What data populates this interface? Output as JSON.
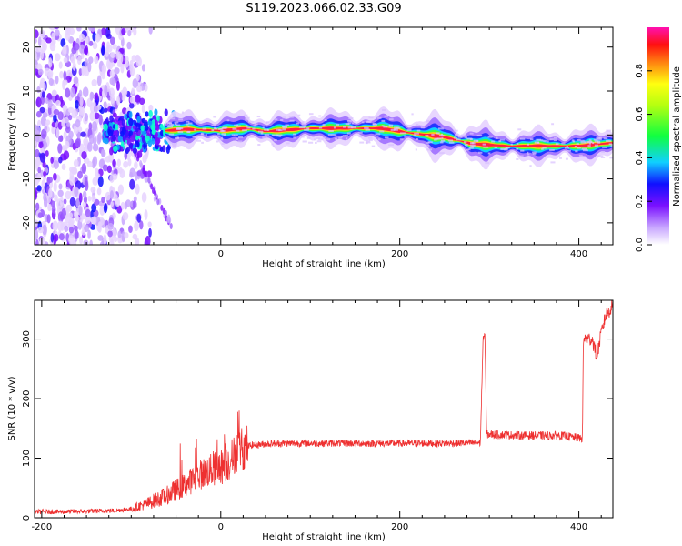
{
  "title": "S119.2023.066.02.33.G09",
  "chart_data": [
    {
      "type": "heatmap",
      "xlabel": "Height of straight line (km)",
      "ylabel": "Frequency (Hz)",
      "xlim": [
        -208,
        438
      ],
      "ylim": [
        -25,
        24.5
      ],
      "xticks": [
        -200,
        0,
        200,
        400
      ],
      "yticks": [
        -20,
        -10,
        0,
        10,
        20
      ],
      "colorbar": {
        "label": "Normalized spectral amplitude",
        "range": [
          0,
          1
        ],
        "ticks": [
          "0.0",
          "0.2",
          "0.4",
          "0.6",
          "0.8"
        ]
      },
      "ridge": [
        {
          "x": -60,
          "y": 1
        },
        {
          "x": -40,
          "y": 1.3
        },
        {
          "x": 0,
          "y": 1
        },
        {
          "x": 30,
          "y": 1.5
        },
        {
          "x": 50,
          "y": 0.8
        },
        {
          "x": 100,
          "y": 1.5
        },
        {
          "x": 180,
          "y": 1.5
        },
        {
          "x": 210,
          "y": 0.5
        },
        {
          "x": 250,
          "y": -0.5
        },
        {
          "x": 280,
          "y": -2
        },
        {
          "x": 320,
          "y": -2.5
        },
        {
          "x": 400,
          "y": -2.5
        },
        {
          "x": 438,
          "y": -1.8
        }
      ]
    },
    {
      "type": "line",
      "xlabel": "Height of straight line (km)",
      "ylabel": "SNR (10 * v/v)",
      "xlim": [
        -208,
        438
      ],
      "ylim": [
        0,
        365
      ],
      "xticks": [
        -200,
        0,
        200,
        400
      ],
      "yticks": [
        0,
        100,
        200,
        300
      ],
      "series": [
        {
          "color": "#ee3030",
          "points": [
            [
              -208,
              10
            ],
            [
              -180,
              10
            ],
            [
              -150,
              11
            ],
            [
              -120,
              12
            ],
            [
              -100,
              15
            ],
            [
              -80,
              25
            ],
            [
              -60,
              38
            ],
            [
              -40,
              55
            ],
            [
              -20,
              75
            ],
            [
              0,
              85
            ],
            [
              10,
              95
            ],
            [
              20,
              115
            ],
            [
              35,
              122
            ],
            [
              60,
              125
            ],
            [
              100,
              125
            ],
            [
              150,
              125
            ],
            [
              200,
              125
            ],
            [
              250,
              125
            ],
            [
              290,
              126
            ],
            [
              293,
              300
            ],
            [
              295,
              310
            ],
            [
              297,
              140
            ],
            [
              300,
              140
            ],
            [
              340,
              138
            ],
            [
              380,
              138
            ],
            [
              404,
              133
            ],
            [
              405,
              300
            ],
            [
              415,
              300
            ],
            [
              420,
              270
            ],
            [
              425,
              310
            ],
            [
              430,
              340
            ],
            [
              438,
              355
            ]
          ]
        }
      ]
    }
  ]
}
